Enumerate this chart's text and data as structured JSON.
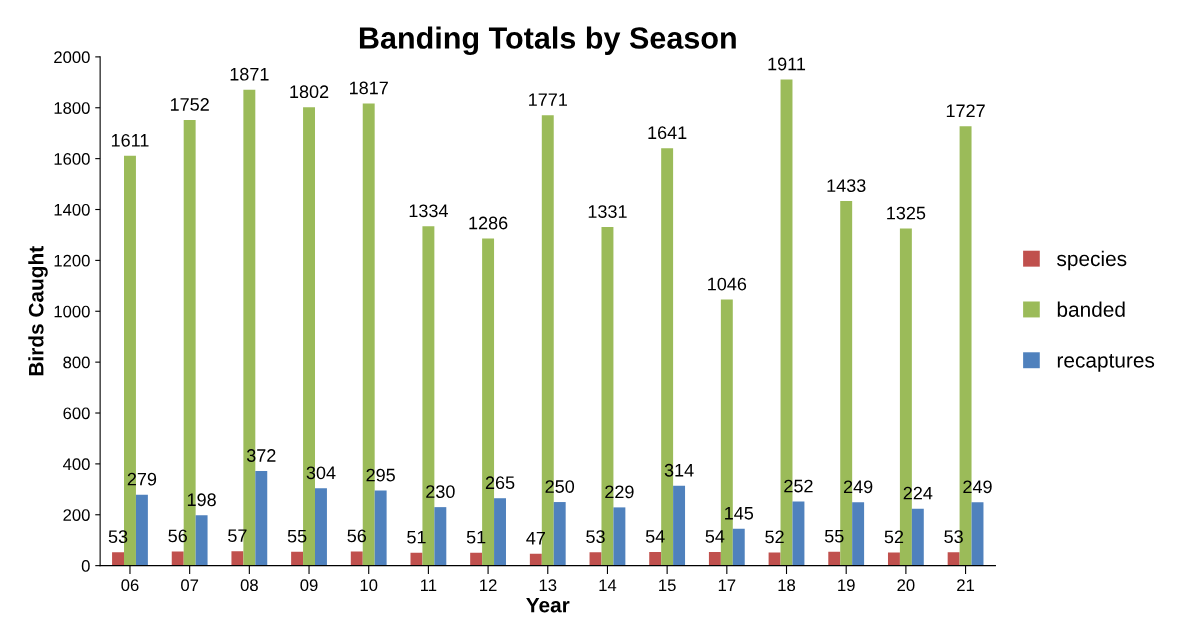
{
  "chart_data": {
    "type": "bar",
    "title": "Banding Totals by Season",
    "xlabel": "Year",
    "ylabel": "Birds Caught",
    "categories": [
      "06",
      "07",
      "08",
      "09",
      "10",
      "11",
      "12",
      "13",
      "14",
      "15",
      "17",
      "18",
      "19",
      "20",
      "21"
    ],
    "series": [
      {
        "name": "species",
        "color": "#c0504d",
        "values": [
          53,
          56,
          57,
          55,
          56,
          51,
          51,
          47,
          53,
          54,
          54,
          52,
          55,
          52,
          53
        ]
      },
      {
        "name": "banded",
        "color": "#9bbb59",
        "values": [
          1611,
          1752,
          1871,
          1802,
          1817,
          1334,
          1286,
          1771,
          1331,
          1641,
          1046,
          1911,
          1433,
          1325,
          1727
        ]
      },
      {
        "name": "recaptures",
        "color": "#4f81bd",
        "values": [
          279,
          198,
          372,
          304,
          295,
          230,
          265,
          250,
          229,
          314,
          145,
          252,
          249,
          224,
          249
        ]
      }
    ],
    "ylim": [
      0,
      2000
    ],
    "yticks": [
      0,
      200,
      400,
      600,
      800,
      1000,
      1200,
      1400,
      1600,
      1800,
      2000
    ],
    "data_labels": true,
    "grid": false,
    "legend": "right"
  }
}
